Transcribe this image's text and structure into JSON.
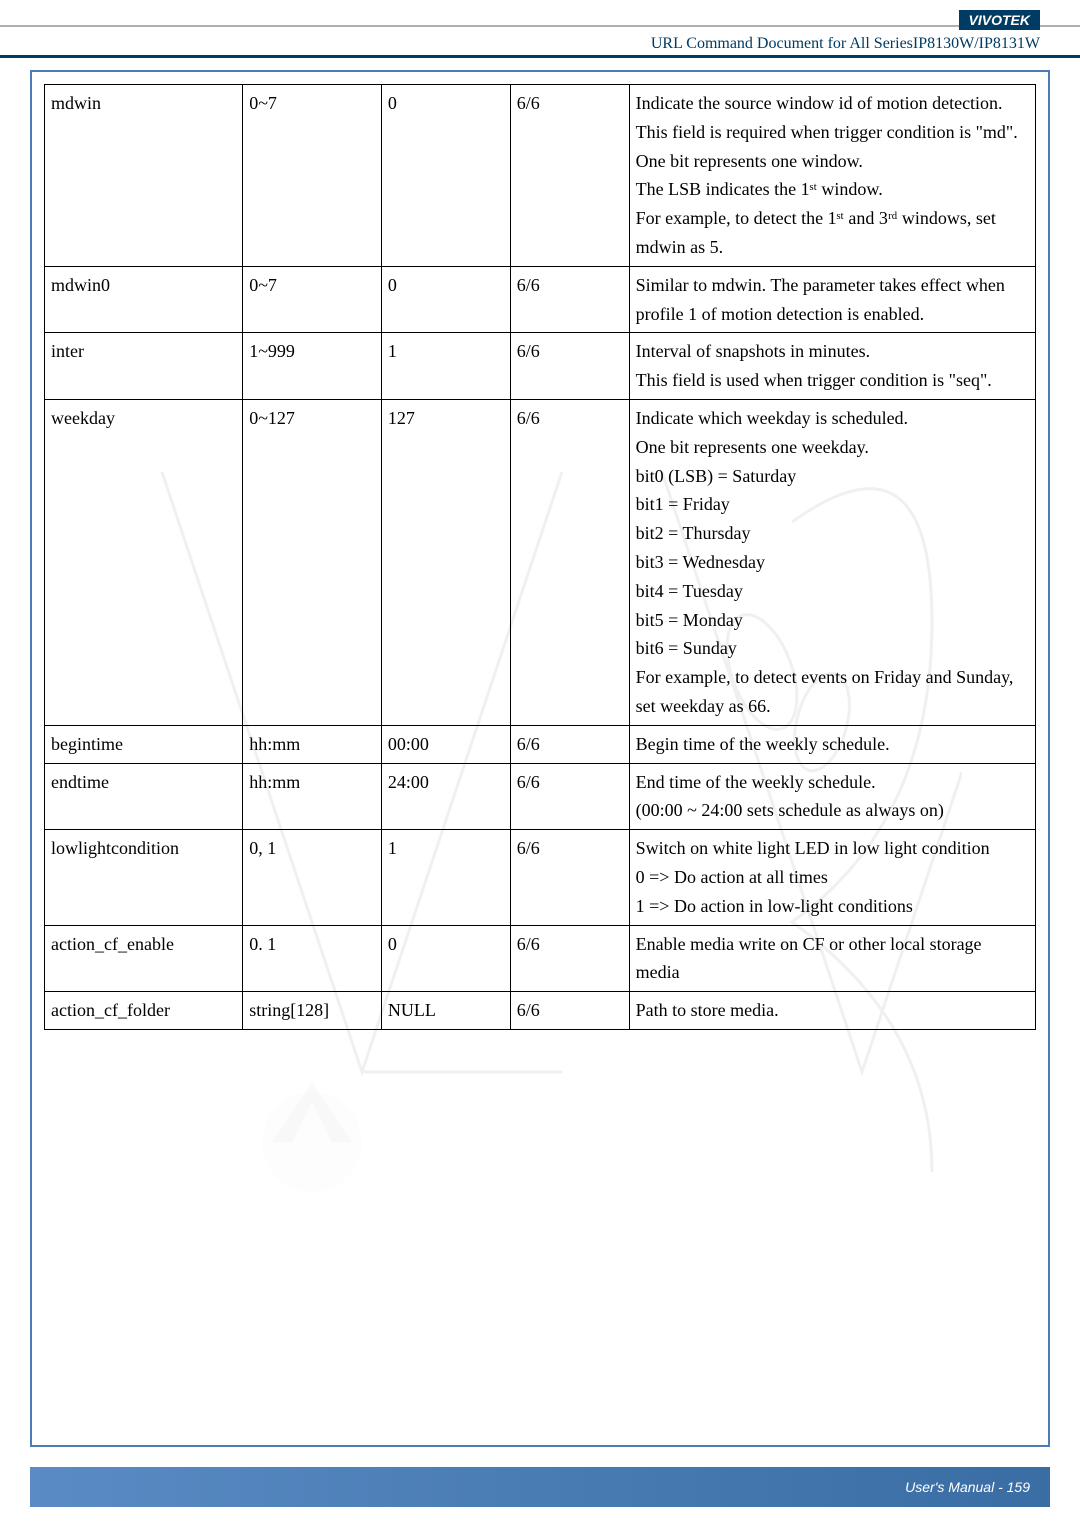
{
  "header": {
    "brand": "VIVOTEK",
    "subtitle": "URL Command Document for All SeriesIP8130W/IP8131W"
  },
  "footer": {
    "text": "User's Manual - 159"
  },
  "table": {
    "rows": [
      {
        "name": "mdwin",
        "range": "0~7",
        "default": "0",
        "security": "6/6",
        "desc": "Indicate the source window id of motion detection.\nThis field is required when trigger condition is \"md\".\nOne bit represents one window.\nThe LSB indicates the 1ˢᵗ window.\nFor example, to detect the 1ˢᵗ and 3ʳᵈ windows, set mdwin as 5."
      },
      {
        "name": "mdwin0",
        "range": "0~7",
        "default": "0",
        "security": "6/6",
        "desc": "Similar to mdwin. The parameter takes effect when profile 1 of motion detection is enabled."
      },
      {
        "name": "inter",
        "range": "1~999",
        "default": "1",
        "security": "6/6",
        "desc": "Interval of snapshots in minutes.\nThis field is used when trigger condition is \"seq\"."
      },
      {
        "name": "weekday",
        "range": "0~127",
        "default": "127",
        "security": "6/6",
        "desc": "Indicate which weekday is scheduled.\nOne bit represents one weekday.\nbit0 (LSB) = Saturday\nbit1 = Friday\nbit2 = Thursday\nbit3 = Wednesday\nbit4 = Tuesday\nbit5 = Monday\nbit6 = Sunday\nFor example, to detect events on Friday and Sunday, set weekday as 66."
      },
      {
        "name": "begintime",
        "range": "hh:mm",
        "default": "00:00",
        "security": "6/6",
        "desc": "Begin time of the weekly schedule."
      },
      {
        "name": "endtime",
        "range": "hh:mm",
        "default": "24:00",
        "security": "6/6",
        "desc": "End time of the weekly schedule.\n(00:00 ~ 24:00 sets schedule as always on)"
      },
      {
        "name": "lowlightcondition",
        "range": "0, 1",
        "default": "1",
        "security": "6/6",
        "desc": "Switch on white light LED in low light condition\n0 => Do action at all times\n1 => Do action in low-light conditions"
      },
      {
        "name": "action_cf_enable",
        "range": "0. 1",
        "default": "0",
        "security": "6/6",
        "desc": "Enable media write on CF or other local storage media"
      },
      {
        "name": "action_cf_folder",
        "range": "string[128]",
        "default": "NULL",
        "security": "6/6",
        "desc": "Path to store media."
      }
    ]
  }
}
